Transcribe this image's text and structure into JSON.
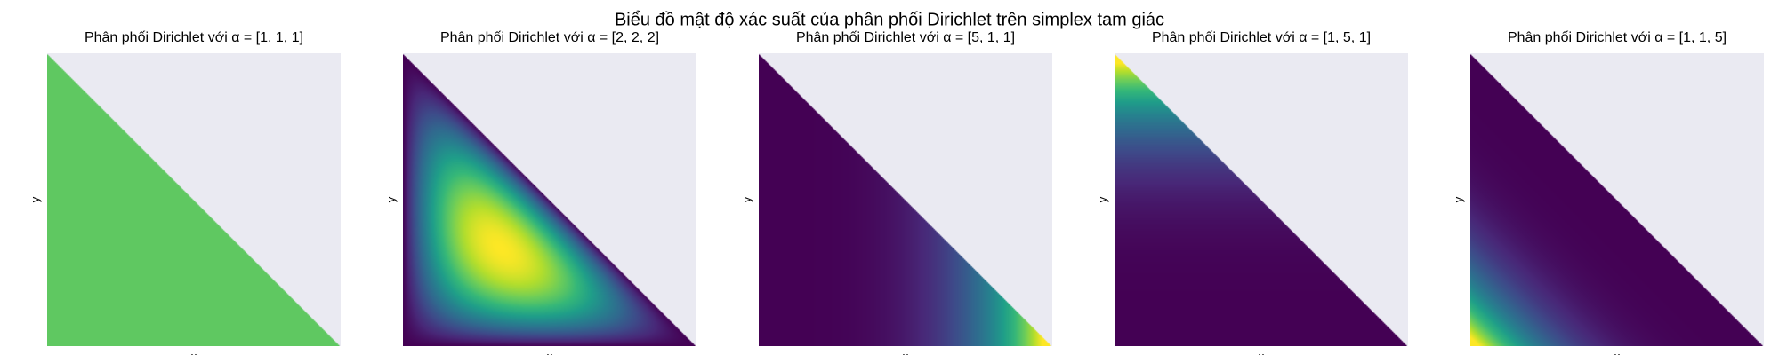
{
  "figure": {
    "suptitle": "Biểu đồ mật độ xác suất của phân phối Dirichlet trên simplex tam giác",
    "background_color": "#ffffff",
    "axes_facecolor": "#eaeaf2",
    "colormap": "viridis"
  },
  "chart_data": [
    {
      "type": "heatmap",
      "title": "Phân phối Dirichlet với α = [1, 1, 1]",
      "xlabel": "x",
      "ylabel": "y",
      "alpha": [
        1,
        1,
        1
      ],
      "xlim": [
        0,
        1
      ],
      "ylim": [
        0,
        1
      ],
      "region": "simplex x + y ≤ 1",
      "density_peak": "uniform",
      "ticks_visible": false,
      "grid": false
    },
    {
      "type": "heatmap",
      "title": "Phân phối Dirichlet với α = [2, 2, 2]",
      "xlabel": "x",
      "ylabel": "y",
      "alpha": [
        2,
        2,
        2
      ],
      "xlim": [
        0,
        1
      ],
      "ylim": [
        0,
        1
      ],
      "region": "simplex x + y ≤ 1",
      "density_peak": [
        0.33,
        0.33
      ],
      "ticks_visible": false,
      "grid": false
    },
    {
      "type": "heatmap",
      "title": "Phân phối Dirichlet với α = [5, 1, 1]",
      "xlabel": "x",
      "ylabel": "y",
      "alpha": [
        5,
        1,
        1
      ],
      "xlim": [
        0,
        1
      ],
      "ylim": [
        0,
        1
      ],
      "region": "simplex x + y ≤ 1",
      "density_peak": [
        1,
        0
      ],
      "ticks_visible": false,
      "grid": false
    },
    {
      "type": "heatmap",
      "title": "Phân phối Dirichlet với α = [1, 5, 1]",
      "xlabel": "x",
      "ylabel": "y",
      "alpha": [
        1,
        5,
        1
      ],
      "xlim": [
        0,
        1
      ],
      "ylim": [
        0,
        1
      ],
      "region": "simplex x + y ≤ 1",
      "density_peak": [
        0,
        1
      ],
      "ticks_visible": false,
      "grid": false
    },
    {
      "type": "heatmap",
      "title": "Phân phối Dirichlet với α = [1, 1, 5]",
      "xlabel": "x",
      "ylabel": "y",
      "alpha": [
        1,
        1,
        5
      ],
      "xlim": [
        0,
        1
      ],
      "ylim": [
        0,
        1
      ],
      "region": "simplex x + y ≤ 1",
      "density_peak": [
        0,
        0
      ],
      "ticks_visible": false,
      "grid": false
    }
  ]
}
